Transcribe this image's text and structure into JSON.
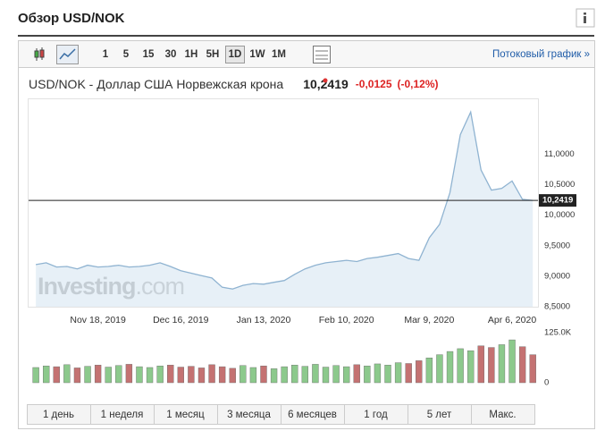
{
  "header": {
    "title": "Обзор USD/NOK"
  },
  "toolbar": {
    "intervals": [
      "1",
      "5",
      "15",
      "30",
      "1H",
      "5H",
      "1D",
      "1W",
      "1M"
    ],
    "selected": "1D",
    "stream": "Потоковый график »"
  },
  "quote": {
    "name": "USD/NOK - Доллар США Норвежская крона",
    "price": "10,2419",
    "change": "-0,0125",
    "change_pct": "(-0,12%)"
  },
  "chart_data": {
    "type": "line",
    "color": "#8fb3d1",
    "fill": "#dde9f3",
    "values": [
      9.19,
      9.22,
      9.15,
      9.16,
      9.12,
      9.18,
      9.15,
      9.16,
      9.18,
      9.15,
      9.16,
      9.18,
      9.22,
      9.16,
      9.09,
      9.05,
      9.01,
      8.97,
      8.82,
      8.79,
      8.85,
      8.88,
      8.87,
      8.9,
      8.93,
      9.03,
      9.12,
      9.18,
      9.22,
      9.24,
      9.26,
      9.24,
      9.29,
      9.31,
      9.34,
      9.37,
      9.29,
      9.26,
      9.63,
      9.85,
      10.37,
      11.32,
      11.69,
      10.74,
      10.41,
      10.44,
      10.56,
      10.26,
      10.2419
    ],
    "xlim": [
      -0.7,
      48.5
    ],
    "xticks": [
      {
        "value": 6,
        "label": "Nov 18, 2019"
      },
      {
        "value": 14,
        "label": "Dec 16, 2019"
      },
      {
        "value": 22,
        "label": "Jan 13, 2020"
      },
      {
        "value": 30,
        "label": "Feb 10, 2020"
      },
      {
        "value": 38,
        "label": "Mar 9, 2020"
      },
      {
        "value": 46,
        "label": "Apr 6, 2020"
      }
    ],
    "ylim": [
      8.5,
      11.9
    ],
    "yticks": [
      {
        "value": 8.5,
        "label": "8,5000"
      },
      {
        "value": 9,
        "label": "9,0000"
      },
      {
        "value": 9.5,
        "label": "9,5000"
      },
      {
        "value": 10,
        "label": "10,0000"
      },
      {
        "value": 10.5,
        "label": "10,5000"
      },
      {
        "value": 11,
        "label": "11,0000"
      }
    ],
    "last_price": {
      "value": 10.2419,
      "label": "10,2419"
    },
    "watermark": [
      "Investing",
      ".com"
    ]
  },
  "volume_chart": {
    "type": "bar",
    "up_color": "#8cc98c",
    "down_color": "#c47272",
    "values": [
      38,
      42,
      40,
      45,
      37,
      41,
      44,
      39,
      43,
      46,
      40,
      38,
      42,
      44,
      39,
      41,
      37,
      45,
      40,
      36,
      43,
      38,
      42,
      35,
      40,
      44,
      41,
      46,
      39,
      43,
      40,
      45,
      42,
      47,
      44,
      50,
      48,
      55,
      62,
      70,
      78,
      85,
      80,
      92,
      88,
      95,
      107,
      90,
      70
    ],
    "ylim": [
      0,
      125
    ],
    "yticks": [
      0,
      {
        "value": 125,
        "label": "125.0K"
      }
    ]
  },
  "periods": [
    "1 день",
    "1 неделя",
    "1 месяц",
    "3 месяца",
    "6 месяцев",
    "1 год",
    "5 лет",
    "Макс."
  ]
}
